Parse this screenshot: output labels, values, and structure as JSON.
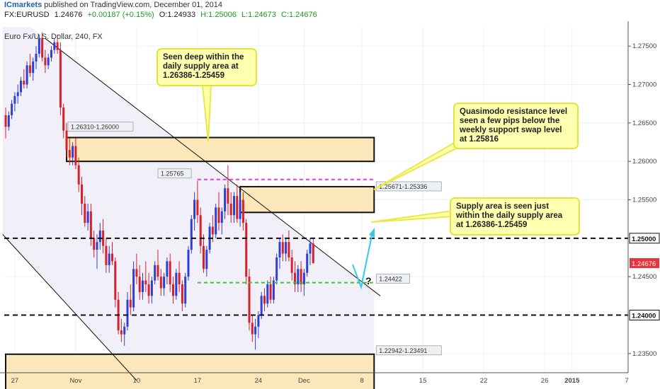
{
  "header": {
    "author": "ICmarkets",
    "published": "published on TradingView.com, December 01, 2014",
    "symbol": "FX:EURUSD",
    "last": "1.24676",
    "change": "+0.00187 (+0.15%)",
    "open": "O:1.24933",
    "high": "H:1.25006",
    "low": "L:1.24673",
    "close": "C:1.24676"
  },
  "chart_data": {
    "type": "candlestick",
    "title": "Euro Fx/U.S. Dollar, 240, FX",
    "ylim": [
      1.2325,
      1.2775
    ],
    "yticks": [
      {
        "v": 1.275,
        "label": "1.27500"
      },
      {
        "v": 1.27,
        "label": "1.27000"
      },
      {
        "v": 1.265,
        "label": "1.26500"
      },
      {
        "v": 1.26,
        "label": "1.26000"
      },
      {
        "v": 1.255,
        "label": "1.25500"
      },
      {
        "v": 1.245,
        "label": "1.24500"
      },
      {
        "v": 1.235,
        "label": "1.23500"
      }
    ],
    "xticks": [
      {
        "i": 3,
        "label": "27"
      },
      {
        "i": 23,
        "label": "Nov"
      },
      {
        "i": 43,
        "label": "10"
      },
      {
        "i": 63,
        "label": "17"
      },
      {
        "i": 83,
        "label": "24"
      },
      {
        "i": 98,
        "label": "Dec"
      },
      {
        "i": 117,
        "label": "8"
      },
      {
        "i": 137,
        "label": "15"
      },
      {
        "i": 157,
        "label": "22"
      },
      {
        "i": 177,
        "label": "26"
      },
      {
        "i": 186,
        "label": "2015"
      },
      {
        "i": 204,
        "label": "7"
      }
    ],
    "last_price": {
      "v": 1.24676,
      "label": "1.24676",
      "color": "#e8343a"
    },
    "levels": [
      {
        "v": 1.25,
        "label": "1.25000",
        "style": "black-dashed"
      },
      {
        "v": 1.24,
        "label": "1.24000",
        "style": "black-dashed"
      }
    ],
    "green_line": {
      "v": 1.24422,
      "label": "1.24422",
      "from": 63,
      "to": 121,
      "color": "#39c439"
    },
    "magenta_line": {
      "v": 1.25765,
      "label": "1.25765",
      "from": 63,
      "to": 121,
      "color": "#e838e8"
    },
    "zones": [
      {
        "top": 1.2631,
        "bottom": 1.26,
        "label": "1.26310-1.26000",
        "from": 20,
        "to": 121
      },
      {
        "top": 1.25671,
        "bottom": 1.25336,
        "label": "1.25671-1.25336",
        "from": 77,
        "to": 121
      },
      {
        "top": 1.23491,
        "bottom": 1.22942,
        "label": "1.22942-1.23491",
        "from": 0,
        "to": 121
      }
    ],
    "channel": {
      "upper": [
        [
          13,
          1.276
        ],
        [
          123,
          1.2425
        ]
      ],
      "lower": [
        [
          -1,
          1.2505
        ],
        [
          43,
          1.2315
        ]
      ],
      "shade_end": 121
    },
    "annotations": [
      {
        "text": [
          "Seen deep within the",
          "daily supply area at",
          "1.26386-1.25459"
        ]
      },
      {
        "text": [
          "Quasimodo resistance level",
          "seen a few pips below the",
          "weekly support swap level",
          "at 1.25816"
        ]
      },
      {
        "text": [
          "Supply area is seen just",
          "within the daily supply area",
          "at 1.26386-1.25459"
        ]
      }
    ],
    "question_mark": "?",
    "candles": [
      [
        1.266,
        1.267,
        1.263,
        1.2645
      ],
      [
        1.2645,
        1.2665,
        1.264,
        1.266
      ],
      [
        1.266,
        1.268,
        1.2655,
        1.2675
      ],
      [
        1.2675,
        1.269,
        1.2665,
        1.2685
      ],
      [
        1.2685,
        1.27,
        1.2675,
        1.269
      ],
      [
        1.269,
        1.271,
        1.2685,
        1.2705
      ],
      [
        1.2705,
        1.272,
        1.2695,
        1.27
      ],
      [
        1.27,
        1.273,
        1.2695,
        1.2725
      ],
      [
        1.2725,
        1.274,
        1.271,
        1.2715
      ],
      [
        1.2715,
        1.2735,
        1.2705,
        1.273
      ],
      [
        1.273,
        1.275,
        1.272,
        1.274
      ],
      [
        1.274,
        1.2765,
        1.2735,
        1.276
      ],
      [
        1.276,
        1.2768,
        1.273,
        1.2735
      ],
      [
        1.2735,
        1.2745,
        1.2715,
        1.2725
      ],
      [
        1.2725,
        1.274,
        1.272,
        1.2735
      ],
      [
        1.2735,
        1.275,
        1.273,
        1.2745
      ],
      [
        1.2745,
        1.276,
        1.274,
        1.2755
      ],
      [
        1.2755,
        1.2765,
        1.274,
        1.2745
      ],
      [
        1.2745,
        1.2755,
        1.266,
        1.267
      ],
      [
        1.267,
        1.2675,
        1.263,
        1.264
      ],
      [
        1.264,
        1.265,
        1.2605,
        1.2615
      ],
      [
        1.2615,
        1.263,
        1.2595,
        1.2605
      ],
      [
        1.2605,
        1.2625,
        1.2595,
        1.262
      ],
      [
        1.262,
        1.263,
        1.259,
        1.2595
      ],
      [
        1.2595,
        1.2605,
        1.256,
        1.257
      ],
      [
        1.257,
        1.258,
        1.253,
        1.2545
      ],
      [
        1.2545,
        1.2555,
        1.2515,
        1.252
      ],
      [
        1.252,
        1.2545,
        1.251,
        1.2535
      ],
      [
        1.2535,
        1.2545,
        1.249,
        1.25
      ],
      [
        1.25,
        1.251,
        1.2475,
        1.2485
      ],
      [
        1.2485,
        1.2505,
        1.246,
        1.2495
      ],
      [
        1.2495,
        1.252,
        1.2485,
        1.251
      ],
      [
        1.251,
        1.2525,
        1.248,
        1.249
      ],
      [
        1.249,
        1.25,
        1.2455,
        1.2465
      ],
      [
        1.2465,
        1.249,
        1.2455,
        1.248
      ],
      [
        1.248,
        1.2495,
        1.2465,
        1.247
      ],
      [
        1.247,
        1.2475,
        1.241,
        1.242
      ],
      [
        1.242,
        1.243,
        1.2375,
        1.238
      ],
      [
        1.238,
        1.2395,
        1.2365,
        1.2375
      ],
      [
        1.2375,
        1.239,
        1.236,
        1.2385
      ],
      [
        1.2385,
        1.243,
        1.238,
        1.242
      ],
      [
        1.242,
        1.244,
        1.24,
        1.241
      ],
      [
        1.241,
        1.247,
        1.2405,
        1.246
      ],
      [
        1.246,
        1.248,
        1.244,
        1.245
      ],
      [
        1.245,
        1.2465,
        1.242,
        1.243
      ],
      [
        1.243,
        1.2455,
        1.242,
        1.2445
      ],
      [
        1.2445,
        1.247,
        1.243,
        1.244
      ],
      [
        1.244,
        1.2455,
        1.2415,
        1.2425
      ],
      [
        1.2425,
        1.245,
        1.2415,
        1.2445
      ],
      [
        1.2445,
        1.247,
        1.244,
        1.2465
      ],
      [
        1.2465,
        1.2485,
        1.2445,
        1.245
      ],
      [
        1.245,
        1.246,
        1.2425,
        1.2435
      ],
      [
        1.2435,
        1.2455,
        1.2425,
        1.245
      ],
      [
        1.245,
        1.2475,
        1.244,
        1.247
      ],
      [
        1.247,
        1.248,
        1.243,
        1.244
      ],
      [
        1.244,
        1.245,
        1.2415,
        1.2425
      ],
      [
        1.2425,
        1.246,
        1.242,
        1.2455
      ],
      [
        1.2455,
        1.247,
        1.243,
        1.244
      ],
      [
        1.244,
        1.2445,
        1.2405,
        1.2415
      ],
      [
        1.2415,
        1.2455,
        1.241,
        1.245
      ],
      [
        1.245,
        1.249,
        1.2445,
        1.2485
      ],
      [
        1.2485,
        1.253,
        1.248,
        1.2525
      ],
      [
        1.2525,
        1.256,
        1.251,
        1.255
      ],
      [
        1.255,
        1.2575,
        1.252,
        1.253
      ],
      [
        1.253,
        1.254,
        1.248,
        1.249
      ],
      [
        1.249,
        1.2505,
        1.2455,
        1.246
      ],
      [
        1.246,
        1.249,
        1.245,
        1.2485
      ],
      [
        1.2485,
        1.252,
        1.248,
        1.2515
      ],
      [
        1.2515,
        1.253,
        1.2495,
        1.2505
      ],
      [
        1.2505,
        1.2545,
        1.25,
        1.254
      ],
      [
        1.254,
        1.256,
        1.251,
        1.252
      ],
      [
        1.252,
        1.254,
        1.2505,
        1.2535
      ],
      [
        1.2535,
        1.257,
        1.2525,
        1.2565
      ],
      [
        1.2565,
        1.2595,
        1.253,
        1.2545
      ],
      [
        1.2545,
        1.256,
        1.252,
        1.253
      ],
      [
        1.253,
        1.256,
        1.252,
        1.2555
      ],
      [
        1.2555,
        1.257,
        1.252,
        1.2525
      ],
      [
        1.2525,
        1.256,
        1.2515,
        1.255
      ],
      [
        1.255,
        1.256,
        1.251,
        1.252
      ],
      [
        1.252,
        1.2525,
        1.244,
        1.245
      ],
      [
        1.245,
        1.246,
        1.238,
        1.239
      ],
      [
        1.239,
        1.24,
        1.2365,
        1.2375
      ],
      [
        1.2375,
        1.2395,
        1.2355,
        1.2385
      ],
      [
        1.2385,
        1.2405,
        1.237,
        1.24
      ],
      [
        1.24,
        1.243,
        1.2395,
        1.2425
      ],
      [
        1.2425,
        1.2435,
        1.2405,
        1.2415
      ],
      [
        1.2415,
        1.2445,
        1.241,
        1.244
      ],
      [
        1.244,
        1.245,
        1.2415,
        1.242
      ],
      [
        1.242,
        1.245,
        1.2415,
        1.2445
      ],
      [
        1.2445,
        1.248,
        1.244,
        1.2475
      ],
      [
        1.2475,
        1.25,
        1.246,
        1.2495
      ],
      [
        1.2495,
        1.2505,
        1.247,
        1.248
      ],
      [
        1.248,
        1.25,
        1.247,
        1.2495
      ],
      [
        1.2495,
        1.251,
        1.247,
        1.2475
      ],
      [
        1.2475,
        1.2485,
        1.2445,
        1.2455
      ],
      [
        1.2455,
        1.247,
        1.243,
        1.244
      ],
      [
        1.244,
        1.2465,
        1.243,
        1.246
      ],
      [
        1.246,
        1.247,
        1.243,
        1.244
      ],
      [
        1.244,
        1.246,
        1.2425,
        1.2455
      ],
      [
        1.2455,
        1.2485,
        1.245,
        1.248
      ],
      [
        1.248,
        1.25,
        1.2465,
        1.2493
      ],
      [
        1.2493,
        1.2501,
        1.2467,
        1.24676
      ]
    ]
  }
}
